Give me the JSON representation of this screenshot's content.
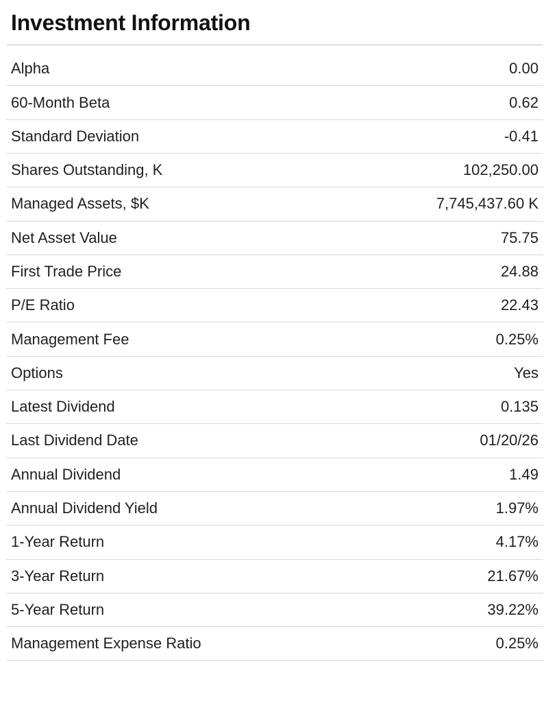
{
  "page": {
    "title": "Investment Information"
  },
  "colors": {
    "background": "#ffffff",
    "text": "#1f1f1f",
    "title_text": "#111111",
    "title_rule": "#c3c3c3",
    "row_rule": "#d9d9d9"
  },
  "table": {
    "rows": [
      {
        "label": "Alpha",
        "value": "0.00"
      },
      {
        "label": "60-Month Beta",
        "value": "0.62"
      },
      {
        "label": "Standard Deviation",
        "value": "-0.41"
      },
      {
        "label": "Shares Outstanding, K",
        "value": "102,250.00"
      },
      {
        "label": "Managed Assets, $K",
        "value": "7,745,437.60 K"
      },
      {
        "label": "Net Asset Value",
        "value": "75.75"
      },
      {
        "label": "First Trade Price",
        "value": "24.88"
      },
      {
        "label": "P/E Ratio",
        "value": "22.43"
      },
      {
        "label": "Management Fee",
        "value": "0.25%"
      },
      {
        "label": "Options",
        "value": "Yes"
      },
      {
        "label": "Latest Dividend",
        "value": "0.135"
      },
      {
        "label": "Last Dividend Date",
        "value": "01/20/26"
      },
      {
        "label": "Annual Dividend",
        "value": "1.49"
      },
      {
        "label": "Annual Dividend Yield",
        "value": "1.97%"
      },
      {
        "label": "1-Year Return",
        "value": "4.17%"
      },
      {
        "label": "3-Year Return",
        "value": "21.67%"
      },
      {
        "label": "5-Year Return",
        "value": "39.22%"
      },
      {
        "label": "Management Expense Ratio",
        "value": "0.25%"
      }
    ]
  }
}
